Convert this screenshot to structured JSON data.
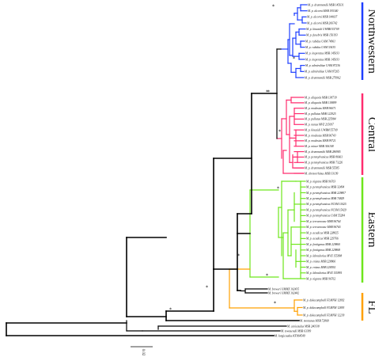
{
  "clades": [
    {
      "name": "Northwestern",
      "color": "#1f3fff"
    },
    {
      "name": "Central",
      "color": "#ff2d6f"
    },
    {
      "name": "Eastern",
      "color": "#6ee61c"
    },
    {
      "name": "FL",
      "color": "#ffa000"
    }
  ],
  "branch_color_default": "#000000",
  "support_marker": "*",
  "scale_bar_label": "0.02",
  "tips": [
    "M. p. drummondii MSB 145631",
    "M. p. alcorni MSB 195340",
    "M. p. alcorni MSB 144037",
    "M. p. alcorni MSB 266742",
    "M. p. kincaidi UWBM 55709",
    "M. p. funebris MSB 156193",
    "M. p. rubidus UAM 74961",
    "M. p. rubidus UAM 53635",
    "M. p. insperatus MSB 145033",
    "M. p. insperatus MSB 145033",
    "M. p. admiraltiae UAM 87236",
    "M. p. admiraltiae UAM 87265",
    "M. p. drummondii MSB 279962",
    "M. p. aliquotis MSB 138739",
    "M. p. aliquotis MSB 118899",
    "M. p. modestus MSB 96671",
    "M. p. pullatus MSB 122925",
    "M. p. pullatus MSB 225984",
    "M. p. nanus MVZ 215097",
    "M. p. kincaidi UWBM 55709",
    "M. p. modestus MSB 96743",
    "M. p. modestus MSB 99721",
    "M. p. minor MSB 306108",
    "M. p. drummondii MSB 286985",
    "M. p. pennsylvanicus MSB 86661",
    "M. p. pennsylvanicus MSB 73226",
    "M. p. drummondii MSB 55585",
    "M. chrotorrhinus MSB 33199",
    "M. p. nigrans MSB 96763",
    "M. p. pennsylvanicus MSB 32494",
    "M. p. pennsylvanicus MSB 229807",
    "M. p. pennsylvanicus MSB 74829",
    "M. p. pennsylvanicus NCSM 15425",
    "M. p. pennsylvanicus NCSM 15429",
    "M. p. pennsylvanicus UAM 55284",
    "M. p. terraenovae MSB 96764",
    "M. p. terraenovae MSB 96765",
    "M. p. acadicus MSB 228825",
    "M. p. acadicus MSB 229766",
    "M. p. fontigenus MSB 229860",
    "M. p. fontigenus MSB 229868",
    "M. p. labradorius MVZ 155998",
    "M. p. enixus MSB 228866",
    "M. p. enixus MSB 228592",
    "M. p. labradorius MVZ 155995",
    "M. p. nigrans MSB 96762",
    "M. breweri UMMZ 102435",
    "M. breweri UMMZ 102442",
    "M. p. dukecampbelli FLMNH 12892",
    "M. p. dukecampbelli FLMNH 12893",
    "M. p. dukecampbelli FLMNH 12239",
    "M. montanus MSB 72868",
    "M. canicaudus MSB 240338",
    "M. townsendii MSB 63399",
    "M. longicaudus KF964549"
  ]
}
